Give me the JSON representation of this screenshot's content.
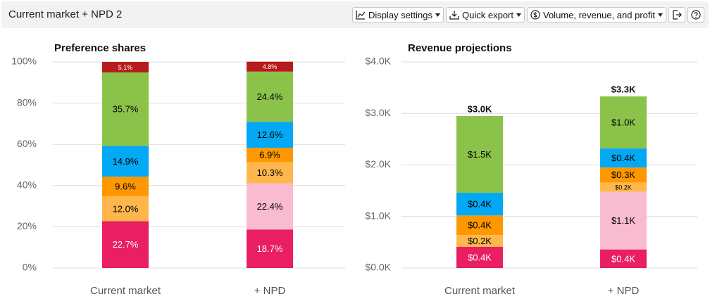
{
  "header": {
    "title": "Current market + NPD 2",
    "buttons": [
      "Display settings",
      "Quick export",
      "Volume, revenue, and profit"
    ]
  },
  "chart_data": [
    {
      "type": "stacked_bar",
      "title": "Preference shares",
      "categories": [
        "Current market",
        "+ NPD"
      ],
      "ylim": [
        0,
        100
      ],
      "yticks": [
        {
          "value": 0,
          "label": "0%"
        },
        {
          "value": 20,
          "label": "20%"
        },
        {
          "value": 40,
          "label": "40%"
        },
        {
          "value": 60,
          "label": "60%"
        },
        {
          "value": 80,
          "label": "80%"
        },
        {
          "value": 100,
          "label": "100%"
        }
      ],
      "grid": true,
      "series": [
        {
          "color": "#e91e63",
          "text_color": "#ffffff",
          "values": [
            22.7,
            18.7
          ],
          "value_labels": [
            "22.7%",
            "18.7%"
          ]
        },
        {
          "color": "#f8bbd0",
          "text_color": "#000000",
          "values": [
            null,
            22.4
          ],
          "value_labels": [
            null,
            "22.4%"
          ]
        },
        {
          "color": "#ffb74d",
          "text_color": "#000000",
          "values": [
            12.0,
            10.3
          ],
          "value_labels": [
            "12.0%",
            "10.3%"
          ]
        },
        {
          "color": "#ff9800",
          "text_color": "#000000",
          "values": [
            9.6,
            6.9
          ],
          "value_labels": [
            "9.6%",
            "6.9%"
          ]
        },
        {
          "color": "#03a9f4",
          "text_color": "#000000",
          "values": [
            14.9,
            12.6
          ],
          "value_labels": [
            "14.9%",
            "12.6%"
          ]
        },
        {
          "color": "#8bc34a",
          "text_color": "#000000",
          "values": [
            35.7,
            24.4
          ],
          "value_labels": [
            "35.7%",
            "24.4%"
          ]
        },
        {
          "color": "#b71c1c",
          "text_color": "#ffffff",
          "values": [
            5.1,
            4.8
          ],
          "value_labels": [
            "5.1%",
            "4.8%"
          ]
        }
      ]
    },
    {
      "type": "stacked_bar",
      "title": "Revenue projections",
      "categories": [
        "Current market",
        "+ NPD"
      ],
      "ylim": [
        0,
        4000
      ],
      "yticks": [
        {
          "value": 0,
          "label": "$0.0K"
        },
        {
          "value": 1000,
          "label": "$1.0K"
        },
        {
          "value": 2000,
          "label": "$2.0K"
        },
        {
          "value": 3000,
          "label": "$3.0K"
        },
        {
          "value": 4000,
          "label": "$4.0K"
        }
      ],
      "grid": true,
      "totals": [
        2950,
        3330
      ],
      "total_labels": [
        "$3.0K",
        "$3.3K"
      ],
      "series": [
        {
          "color": "#e91e63",
          "text_color": "#ffffff",
          "values": [
            410,
            360
          ],
          "value_labels": [
            "$0.4K",
            "$0.4K"
          ]
        },
        {
          "color": "#f8bbd0",
          "text_color": "#000000",
          "values": [
            null,
            1120
          ],
          "value_labels": [
            null,
            "$1.1K"
          ]
        },
        {
          "color": "#ffb74d",
          "text_color": "#000000",
          "values": [
            230,
            180
          ],
          "value_labels": [
            "$0.2K",
            "$0.2K"
          ]
        },
        {
          "color": "#ff9800",
          "text_color": "#000000",
          "values": [
            380,
            290
          ],
          "value_labels": [
            "$0.4K",
            "$0.3K"
          ]
        },
        {
          "color": "#03a9f4",
          "text_color": "#000000",
          "values": [
            440,
            370
          ],
          "value_labels": [
            "$0.4K",
            "$0.4K"
          ]
        },
        {
          "color": "#8bc34a",
          "text_color": "#000000",
          "values": [
            1490,
            1010
          ],
          "value_labels": [
            "$1.5K",
            "$1.0K"
          ]
        }
      ]
    }
  ]
}
